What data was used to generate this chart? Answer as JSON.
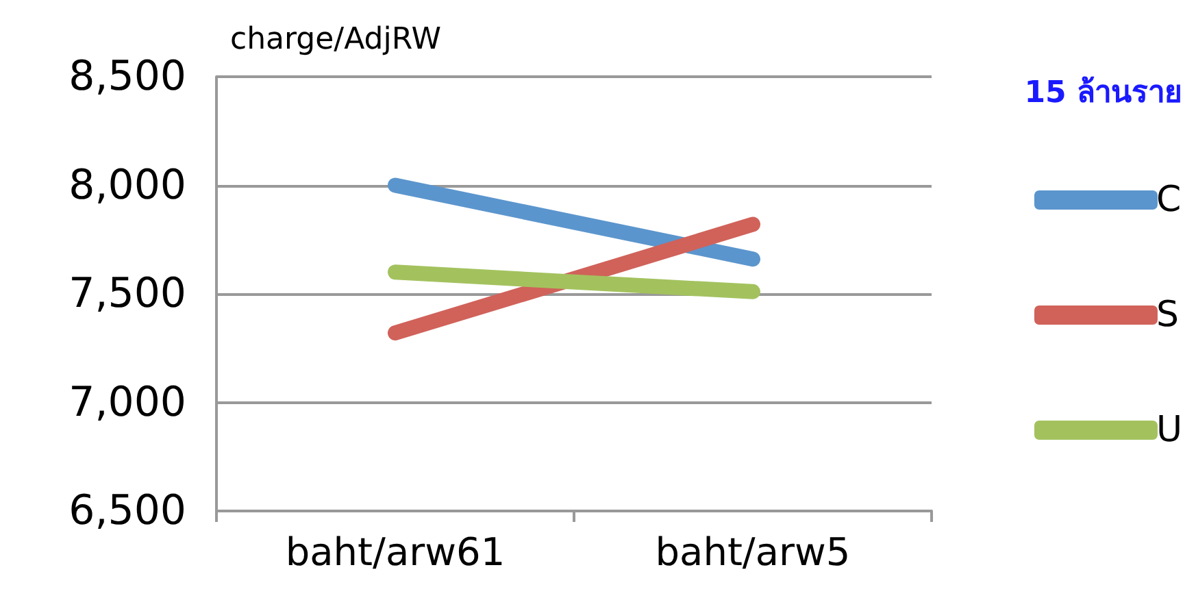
{
  "chart_data": {
    "type": "line",
    "ylabel": "charge/AdjRW",
    "legend_title": "15 ล้านราย",
    "categories": [
      "baht/arw61",
      "baht/arw5"
    ],
    "series": [
      {
        "name": "C",
        "color": "#5b95cd",
        "values": [
          8000,
          7660
        ]
      },
      {
        "name": "S",
        "color": "#d0625a",
        "values": [
          7320,
          7820
        ]
      },
      {
        "name": "U",
        "color": "#a3c25e",
        "values": [
          7600,
          7510
        ]
      }
    ],
    "ylim": [
      6500,
      8500
    ],
    "yticks": [
      {
        "value": 6500,
        "label": "6,500"
      },
      {
        "value": 7000,
        "label": "7,000"
      },
      {
        "value": 7500,
        "label": "7,500"
      },
      {
        "value": 8000,
        "label": "8,000"
      },
      {
        "value": 8500,
        "label": "8,500"
      }
    ],
    "grid": "y",
    "legend": "right",
    "line_style": "solid"
  }
}
